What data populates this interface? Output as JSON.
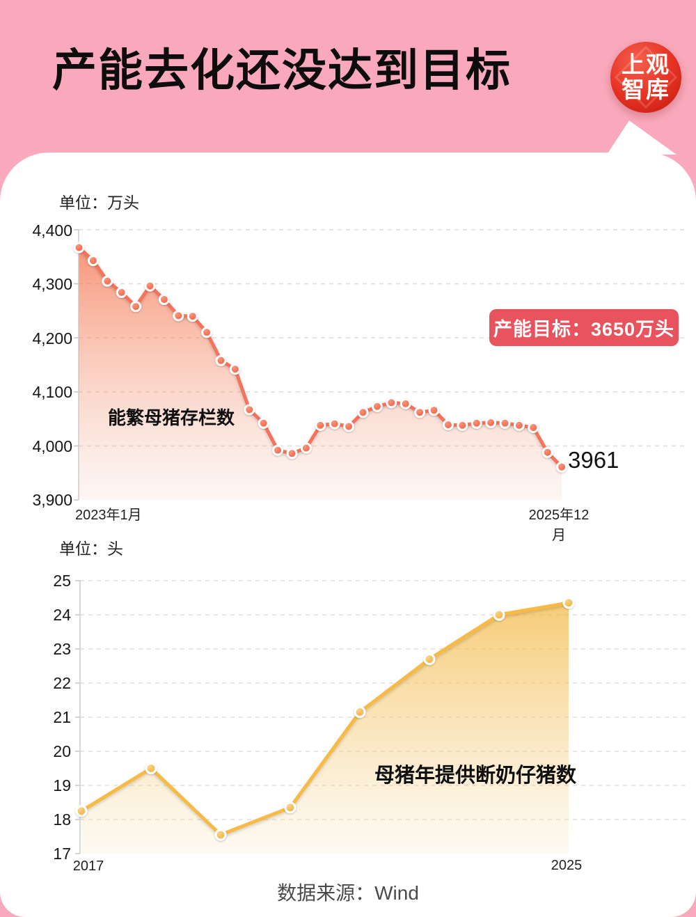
{
  "header": {
    "title": "产能去化还没达到目标",
    "logo_line1": "上观",
    "logo_line2": "智库"
  },
  "chart1": {
    "unit_label": "单位：万头",
    "series_label": "能繁母猪存栏数",
    "target_callout": "产能目标：3650万头",
    "end_value_label": "3961",
    "x_axis_start": "2023年1月",
    "x_axis_end": "2025年12月",
    "y_tick_labels": [
      "4,400",
      "4,300",
      "4,200",
      "4,100",
      "4,000",
      "3,900"
    ]
  },
  "chart2": {
    "unit_label": "单位：头",
    "series_label": "母猪年提供断奶仔猪数",
    "x_axis_start": "2017",
    "x_axis_end": "2025",
    "y_tick_labels": [
      "25",
      "24",
      "23",
      "22",
      "21",
      "20",
      "19",
      "18",
      "17"
    ]
  },
  "footer": {
    "source": "数据来源：Wind"
  },
  "colors": {
    "page_pink": "#f9a9bb",
    "callout_red": "#e7545e",
    "chart1_line": "#f4735a",
    "chart1_dot": "#ee5738",
    "chart2_line": "#f6ba44",
    "chart2_dot": "#efa92b",
    "logo_red": "#e63223"
  },
  "chart_data": [
    {
      "type": "area",
      "title": "能繁母猪存栏数",
      "unit": "万头",
      "x_range": [
        "2023年1月",
        "2025年12月"
      ],
      "x_frequency": "monthly",
      "ylim": [
        3900,
        4400
      ],
      "y_ticks": [
        4400,
        4300,
        4200,
        4100,
        4000,
        3900
      ],
      "grid": "dashed-horizontal",
      "values": [
        4367,
        4343,
        4305,
        4284,
        4258,
        4296,
        4271,
        4241,
        4240,
        4210,
        4158,
        4142,
        4067,
        4042,
        3992,
        3986,
        3996,
        4038,
        4041,
        4036,
        4062,
        4073,
        4080,
        4078,
        4062,
        4066,
        4039,
        4038,
        4042,
        4043,
        4042,
        4038,
        4034,
        3988,
        3961
      ],
      "annotations": {
        "capacity_target_label": "产能目标：3650万头",
        "last_point_label": "3961"
      }
    },
    {
      "type": "area",
      "title": "母猪年提供断奶仔猪数",
      "unit": "头",
      "x_labels_visible": [
        "2017",
        "2025"
      ],
      "ylim": [
        17,
        25
      ],
      "y_ticks": [
        25,
        24,
        23,
        22,
        21,
        20,
        19,
        18,
        17
      ],
      "grid": "dashed-horizontal",
      "values": [
        18.25,
        19.5,
        17.55,
        18.35,
        21.15,
        22.7,
        24.0,
        24.35
      ]
    }
  ]
}
